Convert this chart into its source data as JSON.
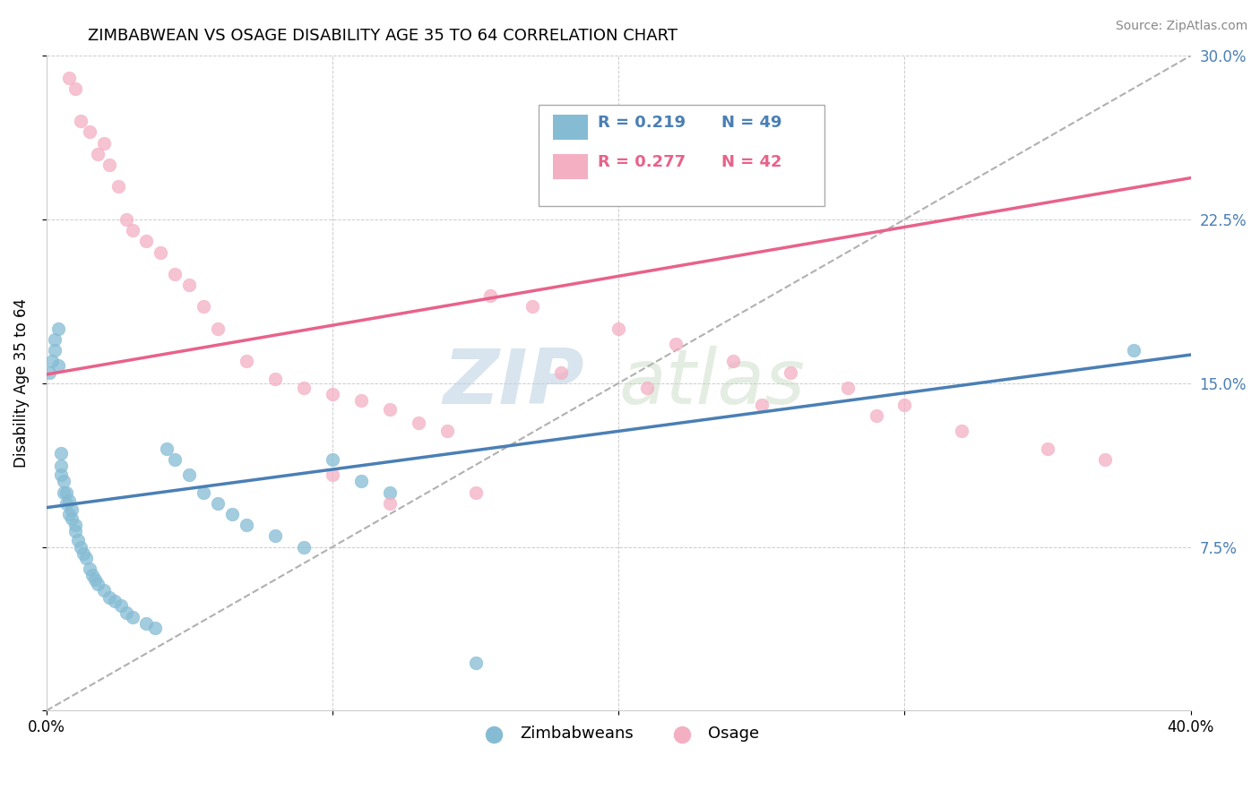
{
  "title": "ZIMBABWEAN VS OSAGE DISABILITY AGE 35 TO 64 CORRELATION CHART",
  "source": "Source: ZipAtlas.com",
  "ylabel": "Disability Age 35 to 64",
  "xlim": [
    0.0,
    0.4
  ],
  "ylim": [
    0.0,
    0.3
  ],
  "legend_r_blue": "R = 0.219",
  "legend_n_blue": "N = 49",
  "legend_r_pink": "R = 0.277",
  "legend_n_pink": "N = 42",
  "blue_color": "#85bcd4",
  "pink_color": "#f4afc3",
  "blue_line_color": "#4a7fb5",
  "pink_line_color": "#e8628a",
  "trend_line_color": "#b0b0b0",
  "watermark_zip": "ZIP",
  "watermark_atlas": "atlas",
  "blue_r": 0.219,
  "pink_r": 0.277,
  "blue_line_x": [
    0.0,
    0.4
  ],
  "blue_line_y": [
    0.093,
    0.163
  ],
  "pink_line_x": [
    0.0,
    0.4
  ],
  "pink_line_y": [
    0.154,
    0.244
  ],
  "diag_line_x": [
    0.0,
    0.4
  ],
  "diag_line_y": [
    0.0,
    0.3
  ],
  "blue_scatter_x": [
    0.001,
    0.002,
    0.003,
    0.003,
    0.004,
    0.004,
    0.005,
    0.005,
    0.005,
    0.006,
    0.006,
    0.007,
    0.007,
    0.008,
    0.008,
    0.009,
    0.009,
    0.01,
    0.01,
    0.011,
    0.012,
    0.013,
    0.014,
    0.015,
    0.016,
    0.017,
    0.018,
    0.02,
    0.022,
    0.024,
    0.026,
    0.028,
    0.03,
    0.035,
    0.038,
    0.042,
    0.045,
    0.05,
    0.055,
    0.06,
    0.065,
    0.07,
    0.08,
    0.09,
    0.1,
    0.11,
    0.12,
    0.15,
    0.38
  ],
  "blue_scatter_y": [
    0.155,
    0.16,
    0.165,
    0.17,
    0.158,
    0.175,
    0.108,
    0.112,
    0.118,
    0.1,
    0.105,
    0.095,
    0.1,
    0.09,
    0.096,
    0.092,
    0.088,
    0.085,
    0.082,
    0.078,
    0.075,
    0.072,
    0.07,
    0.065,
    0.062,
    0.06,
    0.058,
    0.055,
    0.052,
    0.05,
    0.048,
    0.045,
    0.043,
    0.04,
    0.038,
    0.12,
    0.115,
    0.108,
    0.1,
    0.095,
    0.09,
    0.085,
    0.08,
    0.075,
    0.115,
    0.105,
    0.1,
    0.022,
    0.165
  ],
  "pink_scatter_x": [
    0.008,
    0.01,
    0.012,
    0.015,
    0.018,
    0.02,
    0.022,
    0.025,
    0.028,
    0.03,
    0.035,
    0.04,
    0.045,
    0.05,
    0.055,
    0.06,
    0.07,
    0.08,
    0.09,
    0.1,
    0.11,
    0.12,
    0.13,
    0.14,
    0.155,
    0.17,
    0.2,
    0.22,
    0.24,
    0.26,
    0.28,
    0.3,
    0.15,
    0.18,
    0.21,
    0.25,
    0.29,
    0.32,
    0.35,
    0.37,
    0.1,
    0.12
  ],
  "pink_scatter_y": [
    0.29,
    0.285,
    0.27,
    0.265,
    0.255,
    0.26,
    0.25,
    0.24,
    0.225,
    0.22,
    0.215,
    0.21,
    0.2,
    0.195,
    0.185,
    0.175,
    0.16,
    0.152,
    0.148,
    0.145,
    0.142,
    0.138,
    0.132,
    0.128,
    0.19,
    0.185,
    0.175,
    0.168,
    0.16,
    0.155,
    0.148,
    0.14,
    0.1,
    0.155,
    0.148,
    0.14,
    0.135,
    0.128,
    0.12,
    0.115,
    0.108,
    0.095
  ]
}
